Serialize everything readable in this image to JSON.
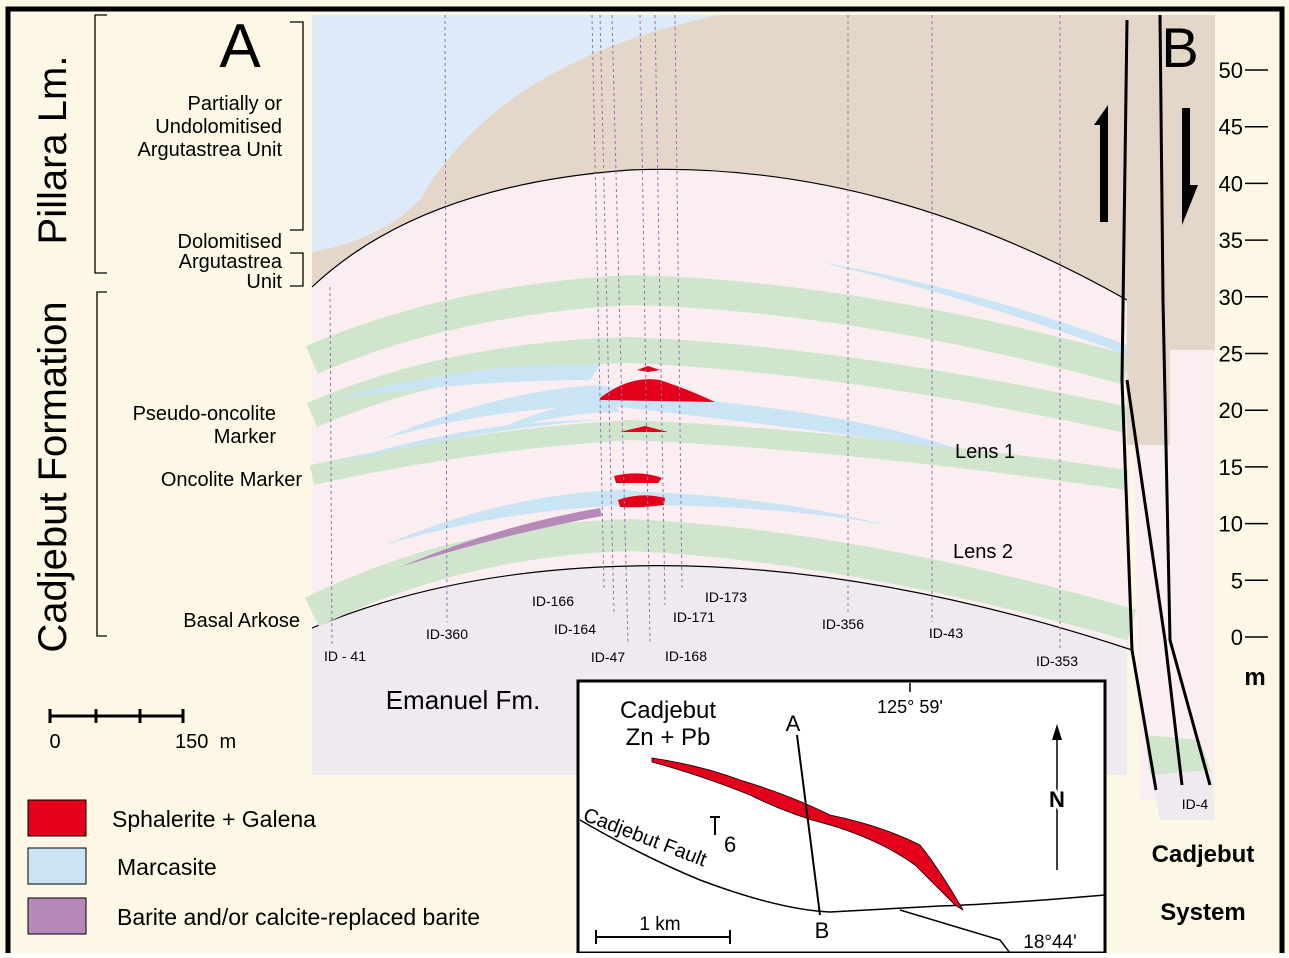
{
  "panel_labels": {
    "a": "A",
    "b": "B"
  },
  "formations": {
    "pillara": "Pillara Lm.",
    "cadjebut": "Cadjebut Formation",
    "emanuel": "Emanuel Fm."
  },
  "units": [
    {
      "lines": [
        "Partially or",
        "Undolomitised",
        "Argutastrea Unit"
      ]
    },
    {
      "lines": [
        "Dolomitised",
        "Argutastrea",
        "Unit"
      ]
    },
    {
      "lines": [
        "Pseudo-oncolite",
        "Marker"
      ]
    },
    {
      "lines": [
        "Oncolite Marker"
      ]
    },
    {
      "lines": [
        "Basal Arkose"
      ]
    }
  ],
  "lenses": [
    "Lens 1",
    "Lens 2"
  ],
  "drill_holes": [
    "ID - 41",
    "ID-360",
    "ID-166",
    "ID-164",
    "ID-47",
    "ID-168",
    "ID-171",
    "ID-173",
    "ID-356",
    "ID-43",
    "ID-353",
    "ID-4"
  ],
  "scale_bar": {
    "start": "0",
    "end": "150  m"
  },
  "legend": [
    "Sphalerite + Galena",
    "Marcasite",
    "Barite and/or calcite-replaced barite"
  ],
  "inset": {
    "deposit": [
      "Cadjebut",
      "Zn + Pb"
    ],
    "a": "A",
    "b": "B",
    "longitude": "125° 59'",
    "north": "N",
    "fault": "Cadjebut Fault",
    "dip": "6",
    "scale": "1 km",
    "latitude": "18°44'"
  },
  "height_scale": {
    "ticks": [
      0,
      5,
      10,
      15,
      20,
      25,
      30,
      35,
      40,
      45,
      50
    ],
    "unit": "m"
  },
  "system": [
    "Cadjebut",
    "System"
  ]
}
